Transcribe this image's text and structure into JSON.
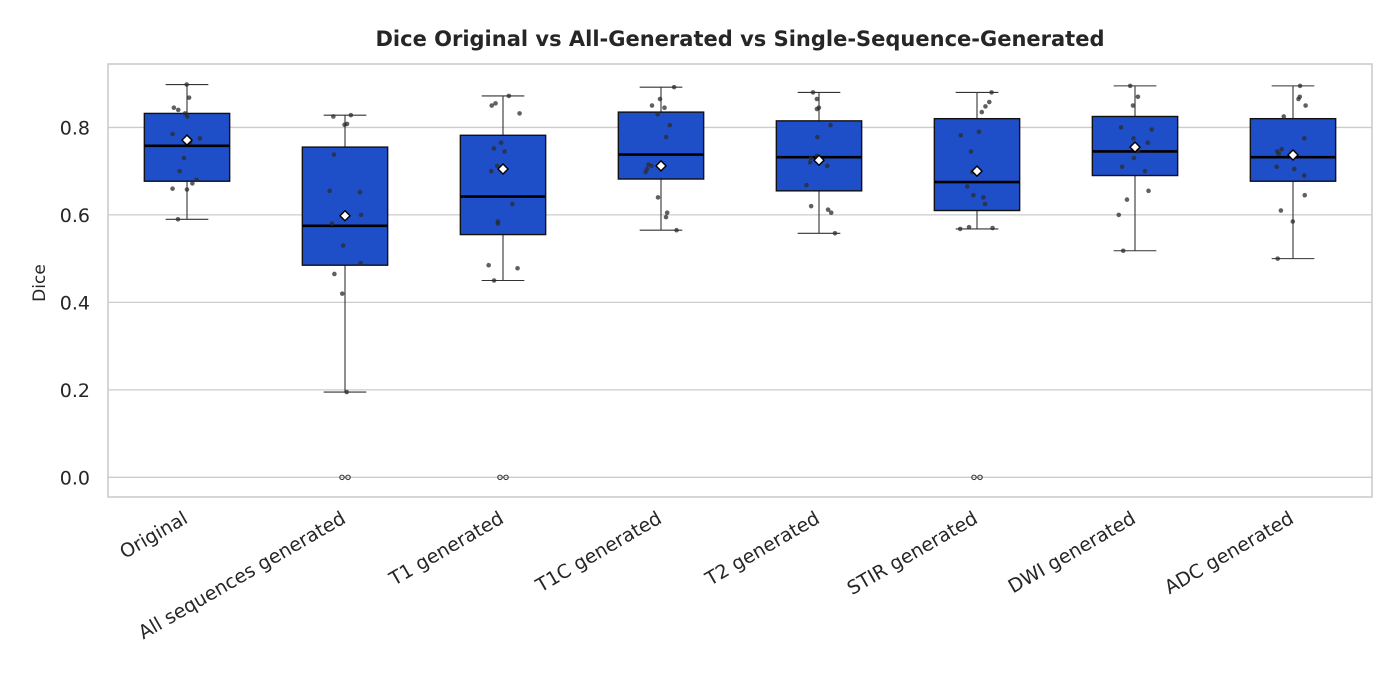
{
  "chart_data": {
    "type": "box",
    "title": "Dice Original vs All-Generated vs Single-Sequence-Generated",
    "xlabel": "",
    "ylabel": "Dice",
    "ylim": [
      -0.045,
      0.945
    ],
    "yticks": [
      0.0,
      0.2,
      0.4,
      0.6,
      0.8
    ],
    "ytick_labels": [
      "0.0",
      "0.2",
      "0.4",
      "0.6",
      "0.8"
    ],
    "grid": "horizontal",
    "legend": "none",
    "box_color": "#1f4fc8",
    "categories": [
      "Original",
      "All sequences generated",
      "T1 generated",
      "T1C generated",
      "T2 generated",
      "STIR generated",
      "DWI generated",
      "ADC generated"
    ],
    "boxes": [
      {
        "label": "Original",
        "whislo": 0.59,
        "q1": 0.677,
        "median": 0.758,
        "q3": 0.832,
        "whishi": 0.898,
        "mean": 0.771,
        "points": [
          0.898,
          0.868,
          0.845,
          0.84,
          0.832,
          0.825,
          0.785,
          0.775,
          0.765,
          0.73,
          0.7,
          0.68,
          0.672,
          0.66,
          0.658,
          0.59
        ],
        "outliers": []
      },
      {
        "label": "All sequences generated",
        "whislo": 0.195,
        "q1": 0.485,
        "median": 0.575,
        "q3": 0.755,
        "whishi": 0.828,
        "mean": 0.598,
        "points": [
          0.828,
          0.825,
          0.808,
          0.806,
          0.738,
          0.655,
          0.652,
          0.6,
          0.58,
          0.53,
          0.49,
          0.465,
          0.42,
          0.195
        ],
        "outliers": [
          0.0,
          0.0
        ]
      },
      {
        "label": "T1 generated",
        "whislo": 0.45,
        "q1": 0.555,
        "median": 0.642,
        "q3": 0.782,
        "whishi": 0.872,
        "mean": 0.705,
        "points": [
          0.872,
          0.855,
          0.85,
          0.832,
          0.765,
          0.752,
          0.745,
          0.712,
          0.7,
          0.625,
          0.585,
          0.58,
          0.485,
          0.478,
          0.45
        ],
        "outliers": [
          0.0,
          0.0
        ]
      },
      {
        "label": "T1C generated",
        "whislo": 0.565,
        "q1": 0.682,
        "median": 0.738,
        "q3": 0.835,
        "whishi": 0.892,
        "mean": 0.712,
        "points": [
          0.892,
          0.865,
          0.85,
          0.845,
          0.83,
          0.805,
          0.778,
          0.715,
          0.712,
          0.71,
          0.705,
          0.698,
          0.64,
          0.605,
          0.595,
          0.565
        ],
        "outliers": []
      },
      {
        "label": "T2 generated",
        "whislo": 0.558,
        "q1": 0.655,
        "median": 0.732,
        "q3": 0.815,
        "whishi": 0.88,
        "mean": 0.725,
        "points": [
          0.88,
          0.865,
          0.845,
          0.842,
          0.805,
          0.778,
          0.735,
          0.73,
          0.72,
          0.712,
          0.668,
          0.62,
          0.612,
          0.605,
          0.558
        ],
        "outliers": []
      },
      {
        "label": "STIR generated",
        "whislo": 0.568,
        "q1": 0.61,
        "median": 0.675,
        "q3": 0.82,
        "whishi": 0.88,
        "mean": 0.7,
        "points": [
          0.88,
          0.858,
          0.848,
          0.835,
          0.79,
          0.782,
          0.745,
          0.698,
          0.665,
          0.645,
          0.64,
          0.625,
          0.572,
          0.57,
          0.568
        ],
        "outliers": [
          0.0,
          0.0
        ]
      },
      {
        "label": "DWI generated",
        "whislo": 0.518,
        "q1": 0.69,
        "median": 0.745,
        "q3": 0.825,
        "whishi": 0.895,
        "mean": 0.755,
        "points": [
          0.895,
          0.87,
          0.85,
          0.8,
          0.795,
          0.775,
          0.765,
          0.745,
          0.73,
          0.71,
          0.7,
          0.655,
          0.635,
          0.6,
          0.518
        ],
        "outliers": []
      },
      {
        "label": "ADC generated",
        "whislo": 0.5,
        "q1": 0.677,
        "median": 0.732,
        "q3": 0.82,
        "whishi": 0.895,
        "mean": 0.737,
        "points": [
          0.895,
          0.87,
          0.865,
          0.85,
          0.825,
          0.775,
          0.75,
          0.745,
          0.74,
          0.71,
          0.705,
          0.69,
          0.645,
          0.61,
          0.585,
          0.5
        ],
        "outliers": []
      }
    ]
  }
}
